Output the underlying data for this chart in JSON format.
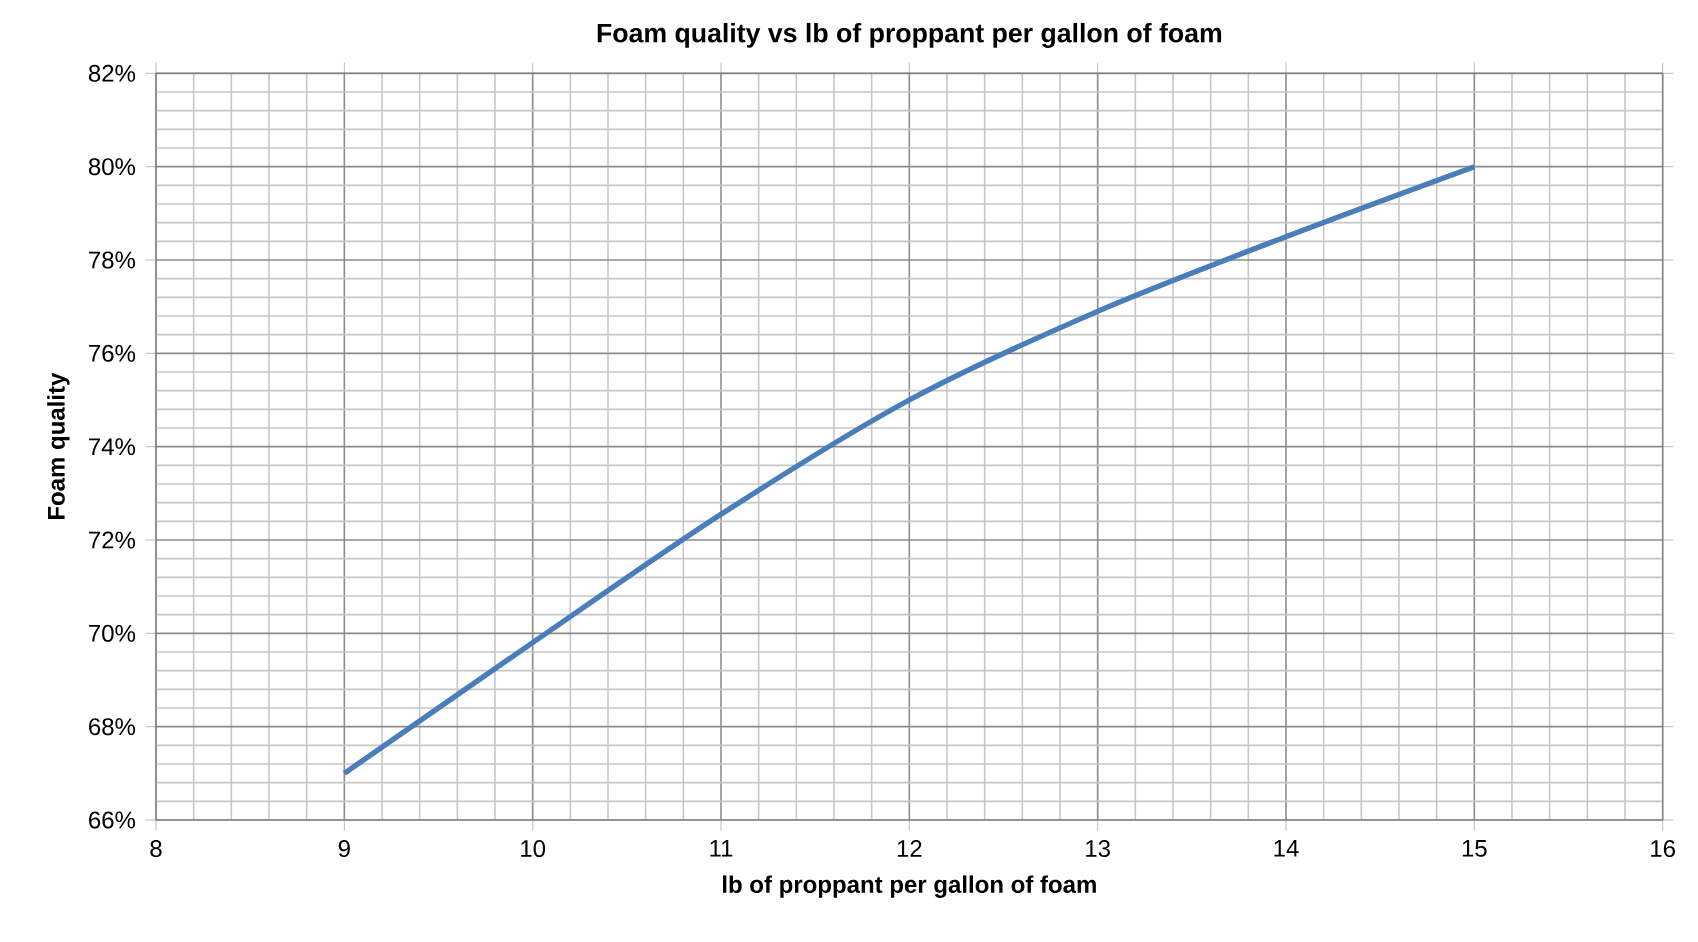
{
  "chart_data": {
    "type": "line",
    "title": "Foam quality vs lb of proppant per gallon of foam",
    "xlabel": "lb of proppant per gallon of foam",
    "ylabel": "Foam quality",
    "x": [
      9,
      10,
      11,
      12,
      13,
      14,
      15
    ],
    "series": [
      {
        "color": "#4a7ebb",
        "values": [
          67,
          69.8,
          72.55,
          75.0,
          76.9,
          78.5,
          80.0
        ]
      }
    ],
    "xlim": [
      8,
      16
    ],
    "xticks": [
      8,
      9,
      10,
      11,
      12,
      13,
      14,
      15,
      16
    ],
    "ylim": [
      66,
      82
    ],
    "yticks": [
      {
        "value": 66,
        "label": "66%"
      },
      {
        "value": 68,
        "label": "68%"
      },
      {
        "value": 70,
        "label": "70%"
      },
      {
        "value": 72,
        "label": "72%"
      },
      {
        "value": 74,
        "label": "74%"
      },
      {
        "value": 76,
        "label": "76%"
      },
      {
        "value": 78,
        "label": "78%"
      },
      {
        "value": 80,
        "label": "80%"
      },
      {
        "value": 82,
        "label": "82%"
      }
    ],
    "grid": true,
    "marker": "none",
    "line_style": "solid"
  }
}
